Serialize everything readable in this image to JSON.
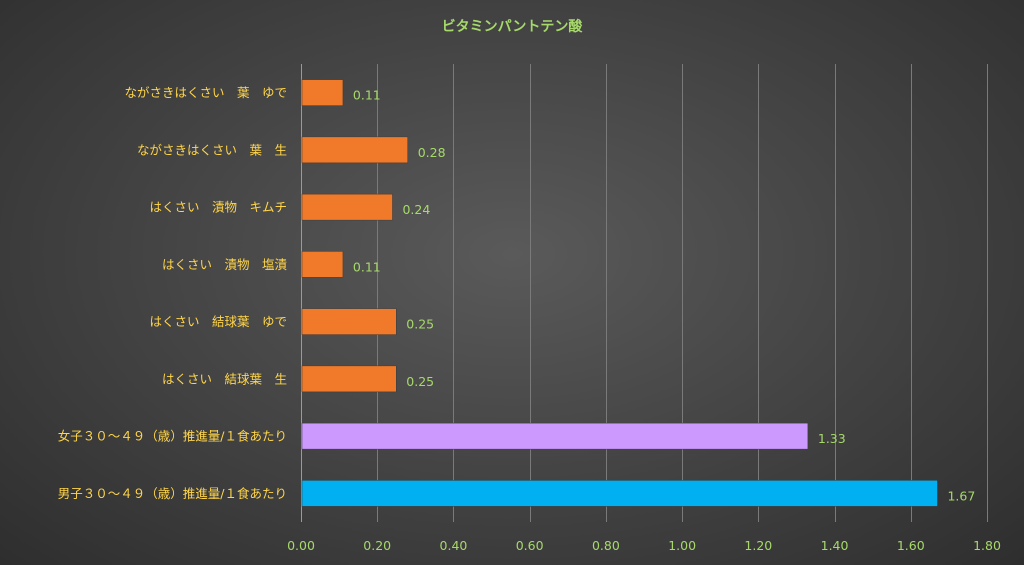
{
  "chart_data": {
    "type": "bar",
    "orientation": "horizontal",
    "title": "ビタミンパントテン酸",
    "xlim": [
      0,
      1.8
    ],
    "xticks": [
      "0.00",
      "0.20",
      "0.40",
      "0.60",
      "0.80",
      "1.00",
      "1.20",
      "1.40",
      "1.60",
      "1.80"
    ],
    "grid": true,
    "categories": [
      "ながさきはくさい　葉　ゆで",
      "ながさきはくさい　葉　生",
      "はくさい　漬物　キムチ",
      "はくさい　漬物　塩漬",
      "はくさい　結球葉　ゆで",
      "はくさい　結球葉　生",
      "女子３０～４９（歳）推進量/１食あたり",
      "男子３０～４９（歳）推進量/１食あたり"
    ],
    "values": [
      0.11,
      0.28,
      0.24,
      0.11,
      0.25,
      0.25,
      1.33,
      1.67
    ],
    "value_labels": [
      "0.11",
      "0.28",
      "0.24",
      "0.11",
      "0.25",
      "0.25",
      "1.33",
      "1.67"
    ],
    "colors": [
      "#f07a2a",
      "#f07a2a",
      "#f07a2a",
      "#f07a2a",
      "#f07a2a",
      "#f07a2a",
      "#cc99ff",
      "#00b0f0"
    ]
  }
}
